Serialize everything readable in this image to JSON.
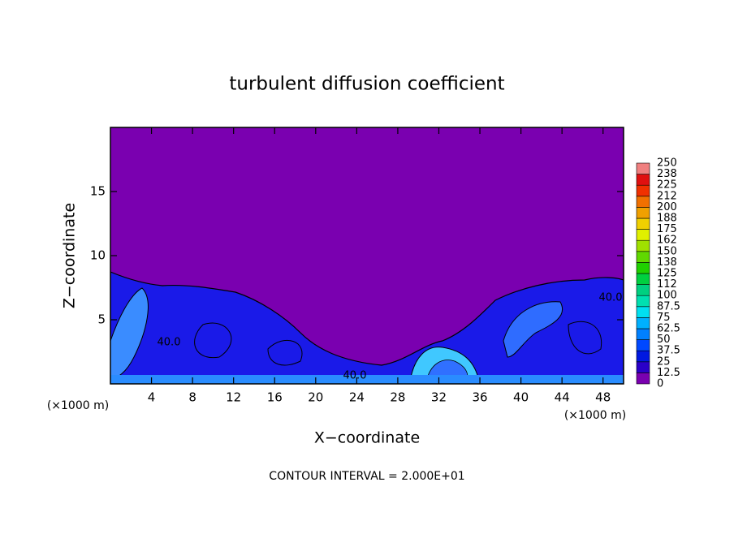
{
  "chart_data": {
    "type": "heatmap",
    "title": "turbulent diffusion coefficient",
    "x_label": "X−coordinate",
    "y_label": "Z−coordinate",
    "x_unit_label": "(×1000 m)",
    "y_unit_label": "(×1000 m)",
    "footnote": "CONTOUR INTERVAL = 2.000E+01",
    "contour_labels": [
      "40.0",
      "40.0",
      "40.0"
    ],
    "xlim": [
      0,
      50
    ],
    "ylim": [
      0,
      20
    ],
    "xticks": [
      4,
      8,
      12,
      16,
      20,
      24,
      28,
      32,
      36,
      40,
      44,
      48
    ],
    "yticks": [
      5,
      10,
      15
    ],
    "colorbar": {
      "levels": [
        0,
        12.5,
        25,
        37.5,
        50,
        62.5,
        75,
        87.5,
        100,
        {
          "value": 112.5,
          "label": "112"
        },
        125,
        {
          "value": 137.5,
          "label": "138"
        },
        150,
        {
          "value": 162.5,
          "label": "162"
        },
        175,
        {
          "value": 187.5,
          "label": "188"
        },
        200,
        {
          "value": 212.5,
          "label": "212"
        },
        225,
        {
          "value": 237.5,
          "label": "238"
        },
        250
      ],
      "colors": [
        "#7a00b0",
        "#2a00c8",
        "#0018e0",
        "#0048ff",
        "#0080ff",
        "#00b0ff",
        "#00e0f0",
        "#00e0b0",
        "#00d080",
        "#00d040",
        "#20d000",
        "#60d800",
        "#a0e000",
        "#e0f000",
        "#f0d000",
        "#f0a000",
        "#f07000",
        "#f03000",
        "#e01010",
        "#f08080"
      ]
    }
  }
}
